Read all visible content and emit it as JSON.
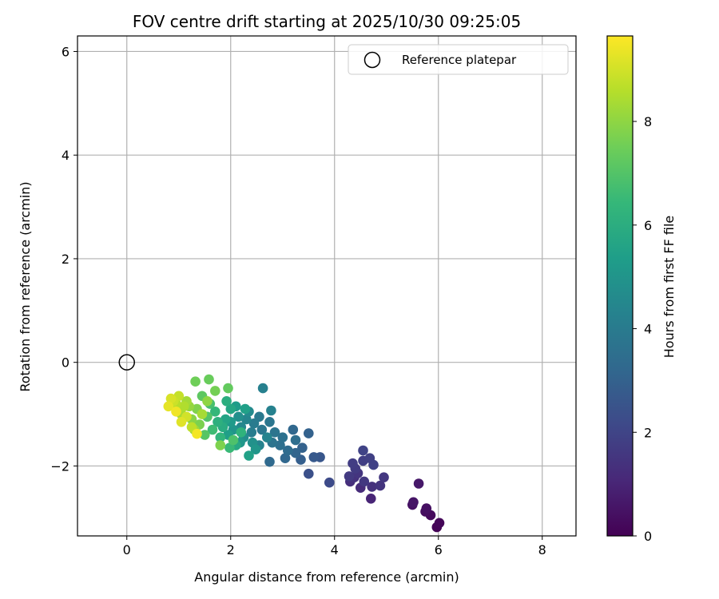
{
  "chart_data": {
    "type": "scatter",
    "title": "FOV centre drift starting at 2025/10/30 09:25:05",
    "xlabel": "Angular distance from reference (arcmin)",
    "ylabel": "Rotation from reference (arcmin)",
    "xlim": [
      -0.95,
      8.65
    ],
    "ylim": [
      -3.35,
      6.3
    ],
    "xticks": [
      0,
      2,
      4,
      6,
      8
    ],
    "yticks": [
      -2,
      0,
      2,
      4,
      6
    ],
    "xtick_labels": [
      "0",
      "2",
      "4",
      "6",
      "8"
    ],
    "ytick_labels": [
      "−2",
      "0",
      "2",
      "4",
      "6"
    ],
    "grid": true,
    "legend": {
      "position": "top-right",
      "label": "Reference platepar"
    },
    "reference_point": {
      "x": 0,
      "y": 0
    },
    "colorbar": {
      "label": "Hours from first FF file",
      "range": [
        0,
        9.65
      ],
      "ticks": [
        0,
        2,
        4,
        6,
        8
      ],
      "tick_labels": [
        "0",
        "2",
        "4",
        "6",
        "8"
      ],
      "colormap": "viridis"
    },
    "colormap_stops": [
      "#440154",
      "#482878",
      "#3e4989",
      "#31688e",
      "#26828e",
      "#1f9e89",
      "#35b779",
      "#6ece58",
      "#b5de2b",
      "#fde725"
    ],
    "points": [
      {
        "x": 5.97,
        "y": -3.18,
        "h": 0.05
      },
      {
        "x": 6.02,
        "y": -3.1,
        "h": 0.12
      },
      {
        "x": 5.85,
        "y": -2.95,
        "h": 0.2
      },
      {
        "x": 5.75,
        "y": -2.88,
        "h": 0.3
      },
      {
        "x": 5.77,
        "y": -2.82,
        "h": 0.38
      },
      {
        "x": 5.5,
        "y": -2.75,
        "h": 0.45
      },
      {
        "x": 5.52,
        "y": -2.7,
        "h": 0.55
      },
      {
        "x": 5.62,
        "y": -2.34,
        "h": 0.62
      },
      {
        "x": 4.7,
        "y": -2.63,
        "h": 1.0
      },
      {
        "x": 4.5,
        "y": -2.42,
        "h": 1.2
      },
      {
        "x": 4.72,
        "y": -2.4,
        "h": 1.35
      },
      {
        "x": 4.88,
        "y": -2.38,
        "h": 1.45
      },
      {
        "x": 4.95,
        "y": -2.22,
        "h": 1.55
      },
      {
        "x": 4.3,
        "y": -2.3,
        "h": 1.3
      },
      {
        "x": 4.38,
        "y": -2.22,
        "h": 1.4
      },
      {
        "x": 4.45,
        "y": -2.14,
        "h": 1.5
      },
      {
        "x": 4.57,
        "y": -2.3,
        "h": 1.6
      },
      {
        "x": 4.4,
        "y": -2.05,
        "h": 1.7
      },
      {
        "x": 4.35,
        "y": -1.95,
        "h": 1.75
      },
      {
        "x": 4.55,
        "y": -1.9,
        "h": 1.8
      },
      {
        "x": 4.68,
        "y": -1.85,
        "h": 1.85
      },
      {
        "x": 4.75,
        "y": -1.98,
        "h": 1.9
      },
      {
        "x": 4.55,
        "y": -1.7,
        "h": 1.95
      },
      {
        "x": 4.28,
        "y": -2.2,
        "h": 1.65
      },
      {
        "x": 3.9,
        "y": -2.32,
        "h": 2.2
      },
      {
        "x": 3.5,
        "y": -2.15,
        "h": 2.4
      },
      {
        "x": 3.72,
        "y": -1.83,
        "h": 2.6
      },
      {
        "x": 3.6,
        "y": -1.83,
        "h": 2.7
      },
      {
        "x": 3.35,
        "y": -1.88,
        "h": 2.9
      },
      {
        "x": 3.38,
        "y": -1.65,
        "h": 3.0
      },
      {
        "x": 3.25,
        "y": -1.75,
        "h": 3.1
      },
      {
        "x": 3.05,
        "y": -1.85,
        "h": 3.2
      },
      {
        "x": 2.75,
        "y": -1.92,
        "h": 3.3
      },
      {
        "x": 3.1,
        "y": -1.7,
        "h": 3.4
      },
      {
        "x": 3.2,
        "y": -1.3,
        "h": 3.2
      },
      {
        "x": 3.5,
        "y": -1.37,
        "h": 3.0
      },
      {
        "x": 3.25,
        "y": -1.5,
        "h": 3.45
      },
      {
        "x": 2.95,
        "y": -1.6,
        "h": 3.55
      },
      {
        "x": 3.0,
        "y": -1.45,
        "h": 3.6
      },
      {
        "x": 2.8,
        "y": -1.55,
        "h": 3.7
      },
      {
        "x": 2.85,
        "y": -1.35,
        "h": 3.75
      },
      {
        "x": 2.75,
        "y": -1.15,
        "h": 3.8
      },
      {
        "x": 2.6,
        "y": -1.3,
        "h": 3.85
      },
      {
        "x": 2.55,
        "y": -1.05,
        "h": 3.9
      },
      {
        "x": 2.45,
        "y": -1.18,
        "h": 4.0
      },
      {
        "x": 2.4,
        "y": -1.35,
        "h": 4.1
      },
      {
        "x": 2.62,
        "y": -0.5,
        "h": 4.2
      },
      {
        "x": 2.78,
        "y": -0.93,
        "h": 4.25
      },
      {
        "x": 2.55,
        "y": -1.6,
        "h": 4.3
      },
      {
        "x": 2.7,
        "y": -1.45,
        "h": 4.35
      },
      {
        "x": 2.3,
        "y": -1.1,
        "h": 4.4
      },
      {
        "x": 2.2,
        "y": -1.25,
        "h": 4.5
      },
      {
        "x": 2.35,
        "y": -0.95,
        "h": 4.6
      },
      {
        "x": 2.25,
        "y": -1.45,
        "h": 4.7
      },
      {
        "x": 2.15,
        "y": -1.05,
        "h": 4.8
      },
      {
        "x": 2.42,
        "y": -1.55,
        "h": 4.85
      },
      {
        "x": 2.05,
        "y": -1.3,
        "h": 5.0
      },
      {
        "x": 2.48,
        "y": -1.68,
        "h": 5.05
      },
      {
        "x": 2.18,
        "y": -1.55,
        "h": 5.1
      },
      {
        "x": 2.0,
        "y": -1.15,
        "h": 5.2
      },
      {
        "x": 2.1,
        "y": -0.85,
        "h": 5.3
      },
      {
        "x": 1.95,
        "y": -1.4,
        "h": 5.4
      },
      {
        "x": 2.28,
        "y": -0.9,
        "h": 5.45
      },
      {
        "x": 2.35,
        "y": -1.8,
        "h": 5.5
      },
      {
        "x": 1.9,
        "y": -1.1,
        "h": 5.6
      },
      {
        "x": 2.0,
        "y": -0.9,
        "h": 5.7
      },
      {
        "x": 2.1,
        "y": -1.6,
        "h": 5.8
      },
      {
        "x": 1.85,
        "y": -1.25,
        "h": 5.9
      },
      {
        "x": 1.92,
        "y": -0.75,
        "h": 6.0
      },
      {
        "x": 1.75,
        "y": -1.15,
        "h": 6.1
      },
      {
        "x": 2.2,
        "y": -1.35,
        "h": 6.2
      },
      {
        "x": 1.8,
        "y": -1.45,
        "h": 6.3
      },
      {
        "x": 1.7,
        "y": -0.95,
        "h": 6.4
      },
      {
        "x": 1.98,
        "y": -1.65,
        "h": 6.5
      },
      {
        "x": 1.65,
        "y": -1.3,
        "h": 6.6
      },
      {
        "x": 1.6,
        "y": -0.8,
        "h": 6.8
      },
      {
        "x": 2.05,
        "y": -1.5,
        "h": 6.9
      },
      {
        "x": 1.55,
        "y": -1.05,
        "h": 7.0
      },
      {
        "x": 1.5,
        "y": -1.4,
        "h": 7.1
      },
      {
        "x": 1.45,
        "y": -0.65,
        "h": 7.2
      },
      {
        "x": 1.95,
        "y": -0.5,
        "h": 7.3
      },
      {
        "x": 1.58,
        "y": -0.33,
        "h": 7.4
      },
      {
        "x": 1.32,
        "y": -0.37,
        "h": 7.5
      },
      {
        "x": 1.7,
        "y": -0.55,
        "h": 7.6
      },
      {
        "x": 1.4,
        "y": -1.2,
        "h": 7.7
      },
      {
        "x": 1.8,
        "y": -1.6,
        "h": 7.75
      },
      {
        "x": 1.35,
        "y": -0.9,
        "h": 7.8
      },
      {
        "x": 1.25,
        "y": -1.1,
        "h": 7.9
      },
      {
        "x": 1.55,
        "y": -0.75,
        "h": 8.0
      },
      {
        "x": 1.2,
        "y": -0.85,
        "h": 8.1
      },
      {
        "x": 1.3,
        "y": -1.3,
        "h": 8.2
      },
      {
        "x": 1.15,
        "y": -0.75,
        "h": 8.3
      },
      {
        "x": 1.45,
        "y": -1.0,
        "h": 8.35
      },
      {
        "x": 1.05,
        "y": -1.0,
        "h": 8.4
      },
      {
        "x": 1.1,
        "y": -0.85,
        "h": 8.5
      },
      {
        "x": 0.95,
        "y": -0.8,
        "h": 8.6
      },
      {
        "x": 1.25,
        "y": -1.25,
        "h": 8.7
      },
      {
        "x": 1.0,
        "y": -0.65,
        "h": 8.8
      },
      {
        "x": 0.9,
        "y": -0.75,
        "h": 8.9
      },
      {
        "x": 1.15,
        "y": -1.05,
        "h": 9.0
      },
      {
        "x": 0.85,
        "y": -0.7,
        "h": 9.1
      },
      {
        "x": 1.05,
        "y": -1.15,
        "h": 9.2
      },
      {
        "x": 0.8,
        "y": -0.85,
        "h": 9.3
      },
      {
        "x": 0.95,
        "y": -0.95,
        "h": 9.45
      },
      {
        "x": 1.35,
        "y": -1.38,
        "h": 9.5
      }
    ]
  }
}
